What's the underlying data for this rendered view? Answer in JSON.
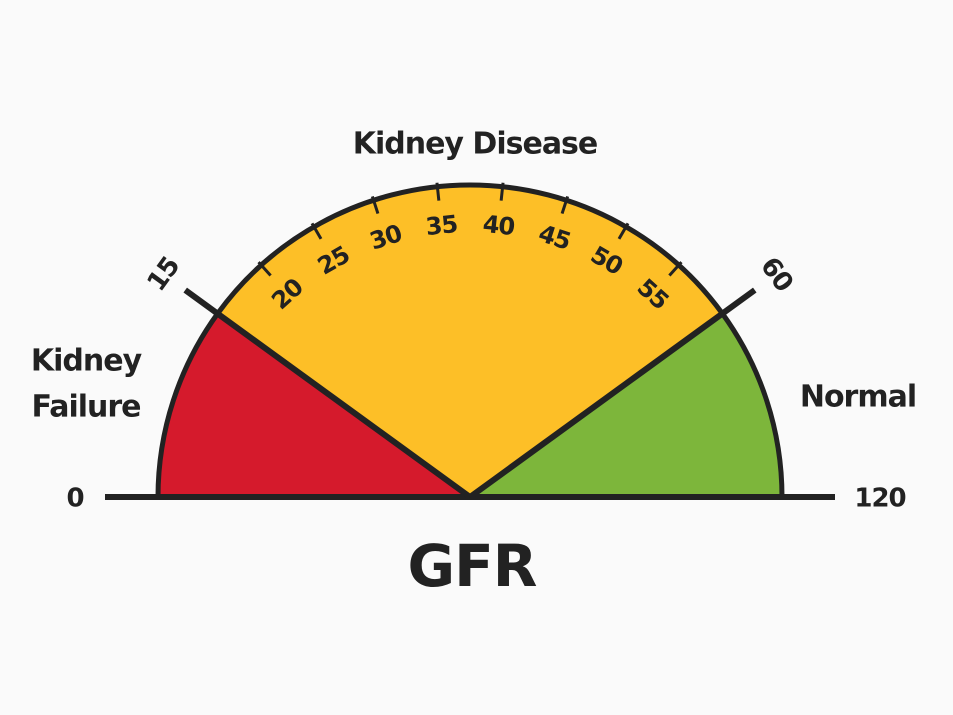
{
  "axis_label": "GFR",
  "zones": [
    {
      "label": [
        "Kidney",
        "Failure"
      ],
      "from": 0,
      "to": 15,
      "color": "#d51a2c"
    },
    {
      "label": [
        "Kidney Disease"
      ],
      "from": 15,
      "to": 60,
      "color": "#fdbf27"
    },
    {
      "label": [
        "Normal"
      ],
      "from": 60,
      "to": 120,
      "color": "#7db63b"
    }
  ],
  "ticks": [
    0,
    15,
    20,
    25,
    30,
    35,
    40,
    45,
    50,
    55,
    60,
    120
  ]
}
